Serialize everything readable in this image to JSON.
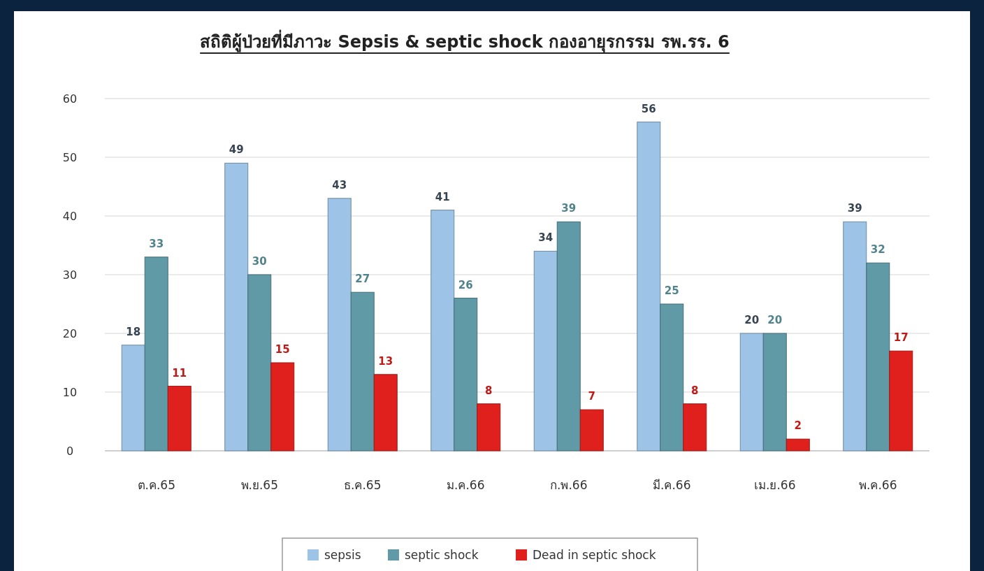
{
  "chart_data": {
    "type": "bar",
    "title": "สถิติผู้ป่วยที่มีภาวะ Sepsis & septic shock กองอายุรกรรม รพ.รร. 6",
    "categories": [
      "ต.ค.65",
      "พ.ย.65",
      "ธ.ค.65",
      "ม.ค.66",
      "ก.พ.66",
      "มี.ค.66",
      "เม.ย.66",
      "พ.ค.66"
    ],
    "series": [
      {
        "name": "sepsis",
        "color": "#9dc3e6",
        "values": [
          18,
          49,
          43,
          41,
          34,
          56,
          20,
          39
        ]
      },
      {
        "name": "septic shock",
        "color": "#5f9aa6",
        "values": [
          33,
          30,
          27,
          26,
          39,
          25,
          20,
          32
        ]
      },
      {
        "name": "Dead in septic shock",
        "color": "#e0201c",
        "values": [
          11,
          15,
          13,
          8,
          7,
          8,
          2,
          17
        ]
      }
    ],
    "ylim": [
      0,
      60
    ],
    "yticks": [
      0,
      10,
      20,
      30,
      40,
      50,
      60
    ],
    "grid": "y",
    "data_labels": true,
    "legend": "bottom"
  }
}
